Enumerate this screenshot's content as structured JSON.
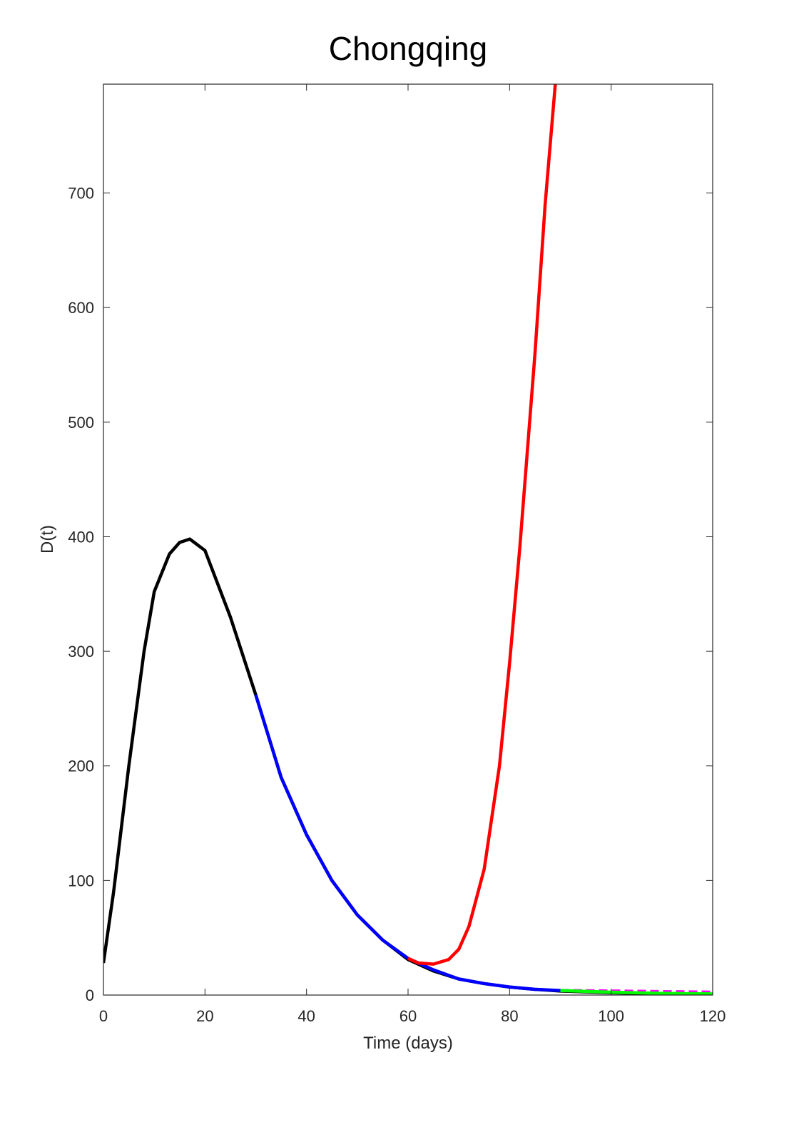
{
  "chart_data": {
    "type": "line",
    "title": "Chongqing",
    "xlabel": "Time (days)",
    "ylabel": "D(t)",
    "xlim": [
      0,
      120
    ],
    "xticks": [
      0,
      20,
      40,
      60,
      80,
      100,
      120
    ],
    "ylim": [
      0,
      795
    ],
    "yticks": [
      0,
      100,
      200,
      300,
      400,
      500,
      600,
      700
    ],
    "series": [
      {
        "color": "#000000",
        "x": [
          0,
          2,
          5,
          8,
          10,
          13,
          15,
          17,
          20,
          25,
          30,
          35,
          40,
          45,
          50,
          55,
          60,
          65,
          70,
          75,
          80,
          85,
          90,
          100,
          110,
          120
        ],
        "values": [
          28,
          90,
          200,
          300,
          352,
          385,
          395,
          398,
          388,
          330,
          262,
          190,
          140,
          100,
          70,
          48,
          31,
          21,
          14,
          10,
          7,
          5,
          3.5,
          2,
          1,
          0.5
        ]
      },
      {
        "color": "#0000ff",
        "x": [
          30,
          35,
          40,
          45,
          50,
          55,
          60,
          65,
          70,
          75,
          80,
          85,
          90
        ],
        "values": [
          262,
          190,
          140,
          100,
          70,
          48,
          32,
          22,
          14,
          10,
          7,
          5,
          4
        ]
      },
      {
        "color": "#ff0000",
        "x": [
          60,
          62,
          65,
          68,
          70,
          72,
          75,
          78,
          80,
          82,
          85,
          87,
          89
        ],
        "values": [
          32,
          28,
          27,
          31,
          40,
          60,
          110,
          200,
          290,
          390,
          560,
          690,
          795
        ]
      },
      {
        "color": "#ff00ff",
        "dashed": true,
        "x": [
          90,
          100,
          110,
          120
        ],
        "values": [
          4,
          3.5,
          3,
          2.5
        ]
      },
      {
        "color": "#00ff00",
        "x": [
          90,
          100,
          110,
          120
        ],
        "values": [
          4,
          2.5,
          1.5,
          1
        ]
      }
    ]
  }
}
